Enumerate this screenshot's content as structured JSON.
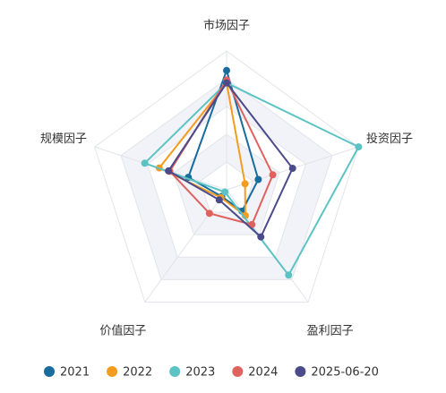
{
  "chart_data": {
    "type": "radar",
    "categories": [
      "市场因子",
      "投资因子",
      "盈利因子",
      "价值因子",
      "规模因子"
    ],
    "rlim": [
      0,
      1
    ],
    "series": [
      {
        "name": "2021",
        "color": "#1a6c9c",
        "values": [
          0.86,
          0.24,
          0.19,
          0.06,
          0.29
        ]
      },
      {
        "name": "2022",
        "color": "#f39c1f",
        "values": [
          0.77,
          0.14,
          0.23,
          0.07,
          0.51
        ]
      },
      {
        "name": "2023",
        "color": "#5cc3c5",
        "values": [
          0.77,
          1.0,
          0.76,
          0.02,
          0.62
        ]
      },
      {
        "name": "2024",
        "color": "#e0625f",
        "values": [
          0.79,
          0.35,
          0.31,
          0.21,
          0.43
        ]
      },
      {
        "name": "2025-06-20",
        "color": "#4b4a8a",
        "values": [
          0.77,
          0.5,
          0.42,
          0.09,
          0.44
        ]
      }
    ]
  }
}
